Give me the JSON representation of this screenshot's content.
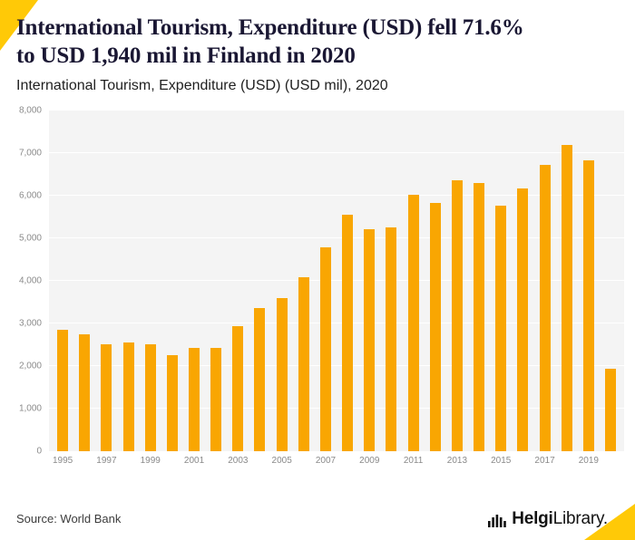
{
  "colors": {
    "accent": "#FFC907",
    "bar": "#F9A602",
    "plot_background": "#F4F4F4",
    "title_text": "#1A1733"
  },
  "header": {
    "title_lines": [
      "International Tourism, Expenditure (USD) fell 71.6%",
      "to USD 1,940 mil in Finland in 2020"
    ],
    "subtitle": "International Tourism, Expenditure (USD) (USD mil), 2020"
  },
  "chart_data": {
    "type": "bar",
    "title": "International Tourism, Expenditure (USD) fell 71.6% to USD 1,940 mil in Finland in 2020",
    "subtitle": "International Tourism, Expenditure (USD) (USD mil), 2020",
    "xlabel": "",
    "ylabel": "",
    "ylim": [
      0,
      8000
    ],
    "ytick_interval": 1000,
    "ytick_labels": [
      "0",
      "1,000",
      "2,000",
      "3,000",
      "4,000",
      "5,000",
      "6,000",
      "7,000",
      "8,000"
    ],
    "categories": [
      "1995",
      "1996",
      "1997",
      "1998",
      "1999",
      "2000",
      "2001",
      "2002",
      "2003",
      "2004",
      "2005",
      "2006",
      "2007",
      "2008",
      "2009",
      "2010",
      "2011",
      "2012",
      "2013",
      "2014",
      "2015",
      "2016",
      "2017",
      "2018",
      "2019",
      "2020"
    ],
    "values": [
      2850,
      2750,
      2510,
      2560,
      2510,
      2260,
      2420,
      2420,
      2940,
      3360,
      3600,
      4090,
      4790,
      5560,
      5210,
      5260,
      6020,
      5830,
      6360,
      6300,
      5770,
      6180,
      6730,
      7190,
      6840,
      1940
    ],
    "xtick_labels": [
      "1995",
      "1997",
      "1999",
      "2001",
      "2003",
      "2005",
      "2007",
      "2009",
      "2011",
      "2013",
      "2015",
      "2017",
      "2019"
    ],
    "bar_color": "#F9A602",
    "grid": true,
    "legend": false
  },
  "footer": {
    "source": "Source: World Bank",
    "logo": {
      "icon": "bar-chart-icon",
      "bold": "Helgi",
      "regular": "Library."
    }
  }
}
